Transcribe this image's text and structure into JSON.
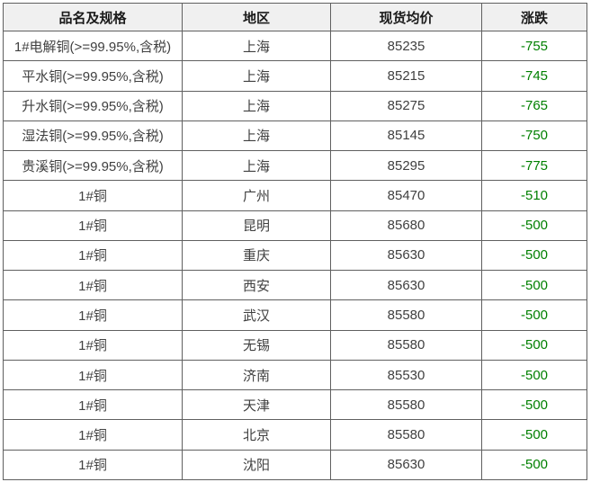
{
  "chart_data": {
    "type": "table",
    "columns": [
      "品名及规格",
      "地区",
      "现货均价",
      "涨跌"
    ],
    "rows": [
      [
        "1#电解铜(>=99.95%,含税)",
        "上海",
        "85235",
        "-755"
      ],
      [
        "平水铜(>=99.95%,含税)",
        "上海",
        "85215",
        "-745"
      ],
      [
        "升水铜(>=99.95%,含税)",
        "上海",
        "85275",
        "-765"
      ],
      [
        "湿法铜(>=99.95%,含税)",
        "上海",
        "85145",
        "-750"
      ],
      [
        "贵溪铜(>=99.95%,含税)",
        "上海",
        "85295",
        "-775"
      ],
      [
        "1#铜",
        "广州",
        "85470",
        "-510"
      ],
      [
        "1#铜",
        "昆明",
        "85680",
        "-500"
      ],
      [
        "1#铜",
        "重庆",
        "85630",
        "-500"
      ],
      [
        "1#铜",
        "西安",
        "85630",
        "-500"
      ],
      [
        "1#铜",
        "武汉",
        "85580",
        "-500"
      ],
      [
        "1#铜",
        "无锡",
        "85580",
        "-500"
      ],
      [
        "1#铜",
        "济南",
        "85530",
        "-500"
      ],
      [
        "1#铜",
        "天津",
        "85580",
        "-500"
      ],
      [
        "1#铜",
        "北京",
        "85580",
        "-500"
      ],
      [
        "1#铜",
        "沈阳",
        "85630",
        "-500"
      ]
    ],
    "title": "",
    "legend": null
  },
  "colors": {
    "decline_green": "#008000",
    "header_background": "#f0f0f0",
    "grid_border": "#606060",
    "body_text": "#404040"
  }
}
